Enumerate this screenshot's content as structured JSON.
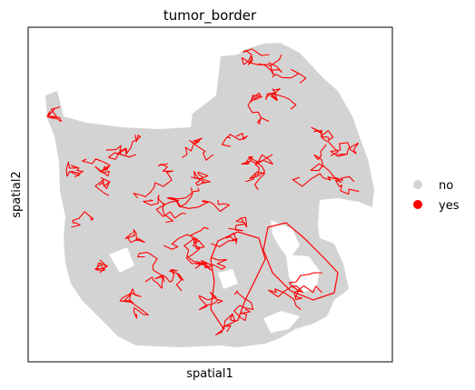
{
  "chart_data": {
    "type": "scatter",
    "title": "tumor_border",
    "xlabel": "spatial1",
    "ylabel": "spatial2",
    "grid": false,
    "ticks": false,
    "legend_placement": "right",
    "series": [
      {
        "name": "no",
        "color": "#d3d3d3"
      },
      {
        "name": "yes",
        "color": "#ff0000"
      }
    ]
  }
}
